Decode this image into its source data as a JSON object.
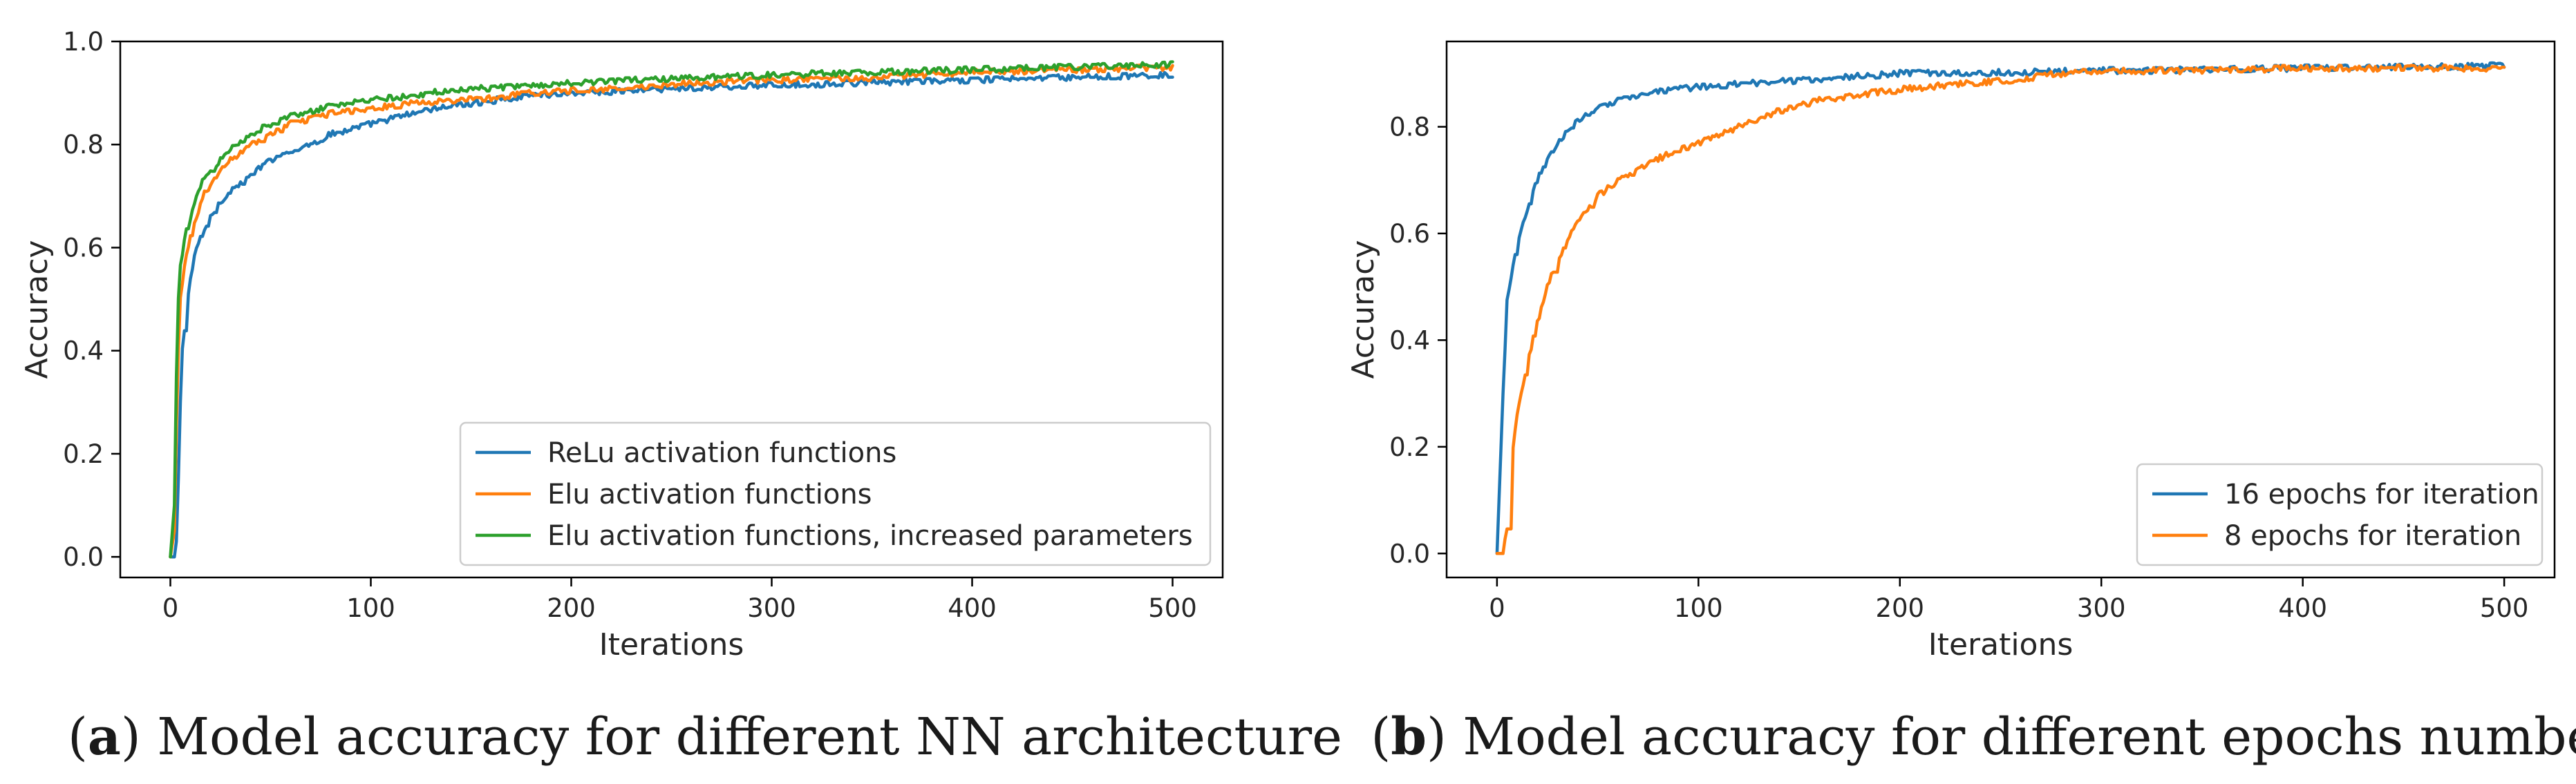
{
  "colors": {
    "blue": "#1f77b4",
    "orange": "#ff7f0e",
    "green": "#2ca02c"
  },
  "chart_data": [
    {
      "type": "line",
      "xlabel": "Iterations",
      "ylabel": "Accuracy",
      "xlim": [
        -25,
        525
      ],
      "ylim": [
        -0.04,
        1.0
      ],
      "xticks": [
        0,
        100,
        200,
        300,
        400,
        500
      ],
      "xtick_labels": [
        "0",
        "100",
        "200",
        "300",
        "400",
        "500"
      ],
      "yticks": [
        0.0,
        0.2,
        0.4,
        0.6,
        0.8,
        1.0
      ],
      "ytick_labels": [
        "0.0",
        "0.2",
        "0.4",
        "0.6",
        "0.8",
        "1.0"
      ],
      "grid": false,
      "legend_position": "lower-right",
      "caption_letter": "a",
      "caption_open": "(",
      "caption_rest": ") Model accuracy for different NN architecture",
      "series": [
        {
          "name": "ReLu activation functions",
          "color": "#1f77b4",
          "x": [
            0,
            2,
            3,
            4,
            5,
            6,
            8,
            10,
            12,
            15,
            20,
            25,
            30,
            40,
            50,
            60,
            70,
            80,
            100,
            120,
            140,
            160,
            180,
            200,
            230,
            260,
            300,
            350,
            400,
            450,
            500
          ],
          "y": [
            0.0,
            0.0,
            0.03,
            0.15,
            0.3,
            0.4,
            0.48,
            0.54,
            0.58,
            0.62,
            0.66,
            0.69,
            0.71,
            0.74,
            0.77,
            0.79,
            0.8,
            0.82,
            0.84,
            0.86,
            0.875,
            0.885,
            0.895,
            0.9,
            0.905,
            0.91,
            0.915,
            0.92,
            0.925,
            0.93,
            0.935
          ]
        },
        {
          "name": "Elu activation functions",
          "color": "#ff7f0e",
          "x": [
            0,
            2,
            3,
            4,
            5,
            7,
            10,
            13,
            16,
            20,
            25,
            30,
            40,
            50,
            60,
            70,
            80,
            100,
            120,
            140,
            160,
            180,
            200,
            230,
            260,
            300,
            350,
            400,
            450,
            500
          ],
          "y": [
            0.0,
            0.05,
            0.25,
            0.4,
            0.5,
            0.56,
            0.62,
            0.66,
            0.7,
            0.72,
            0.75,
            0.77,
            0.8,
            0.82,
            0.84,
            0.85,
            0.86,
            0.87,
            0.88,
            0.885,
            0.89,
            0.9,
            0.905,
            0.91,
            0.92,
            0.925,
            0.93,
            0.94,
            0.945,
            0.95
          ]
        },
        {
          "name": "Elu activation functions, increased parameters",
          "color": "#2ca02c",
          "x": [
            0,
            2,
            3,
            4,
            5,
            7,
            10,
            13,
            16,
            20,
            25,
            30,
            40,
            50,
            60,
            70,
            80,
            100,
            120,
            140,
            160,
            180,
            200,
            230,
            260,
            300,
            350,
            400,
            450,
            500
          ],
          "y": [
            0.0,
            0.1,
            0.35,
            0.5,
            0.56,
            0.62,
            0.66,
            0.7,
            0.73,
            0.75,
            0.77,
            0.79,
            0.82,
            0.84,
            0.855,
            0.865,
            0.875,
            0.885,
            0.895,
            0.905,
            0.91,
            0.915,
            0.92,
            0.925,
            0.93,
            0.935,
            0.94,
            0.945,
            0.95,
            0.955
          ]
        }
      ]
    },
    {
      "type": "line",
      "xlabel": "Iterations",
      "ylabel": "Accuracy",
      "xlim": [
        -25,
        525
      ],
      "ylim": [
        -0.045,
        0.96
      ],
      "xticks": [
        0,
        100,
        200,
        300,
        400,
        500
      ],
      "xtick_labels": [
        "0",
        "100",
        "200",
        "300",
        "400",
        "500"
      ],
      "yticks": [
        0.0,
        0.2,
        0.4,
        0.6,
        0.8
      ],
      "ytick_labels": [
        "0.0",
        "0.2",
        "0.4",
        "0.6",
        "0.8"
      ],
      "grid": false,
      "legend_position": "lower-right",
      "caption_letter": "b",
      "caption_open": "(",
      "caption_rest": ") Model accuracy for different epochs number",
      "series": [
        {
          "name": "16 epochs for iteration",
          "color": "#1f77b4",
          "x": [
            0,
            2,
            3,
            4,
            5,
            7,
            10,
            15,
            20,
            25,
            30,
            40,
            50,
            60,
            70,
            80,
            100,
            120,
            140,
            160,
            180,
            200,
            250,
            300,
            350,
            400,
            450,
            500
          ],
          "y": [
            0.0,
            0.2,
            0.3,
            0.38,
            0.47,
            0.52,
            0.58,
            0.64,
            0.7,
            0.74,
            0.77,
            0.81,
            0.835,
            0.85,
            0.86,
            0.865,
            0.875,
            0.88,
            0.885,
            0.89,
            0.895,
            0.9,
            0.902,
            0.905,
            0.907,
            0.91,
            0.912,
            0.915
          ]
        },
        {
          "name": "8 epochs for iteration",
          "color": "#ff7f0e",
          "x": [
            0,
            3,
            5,
            6,
            8,
            10,
            12,
            15,
            20,
            25,
            30,
            40,
            50,
            60,
            70,
            80,
            100,
            120,
            140,
            160,
            180,
            200,
            230,
            260,
            280,
            300,
            350,
            400,
            450,
            500
          ],
          "y": [
            0.0,
            0.0,
            0.05,
            0.15,
            0.2,
            0.26,
            0.3,
            0.36,
            0.43,
            0.5,
            0.55,
            0.62,
            0.67,
            0.7,
            0.72,
            0.74,
            0.77,
            0.8,
            0.83,
            0.85,
            0.86,
            0.87,
            0.88,
            0.89,
            0.9,
            0.905,
            0.905,
            0.91,
            0.91,
            0.91
          ]
        }
      ]
    }
  ]
}
